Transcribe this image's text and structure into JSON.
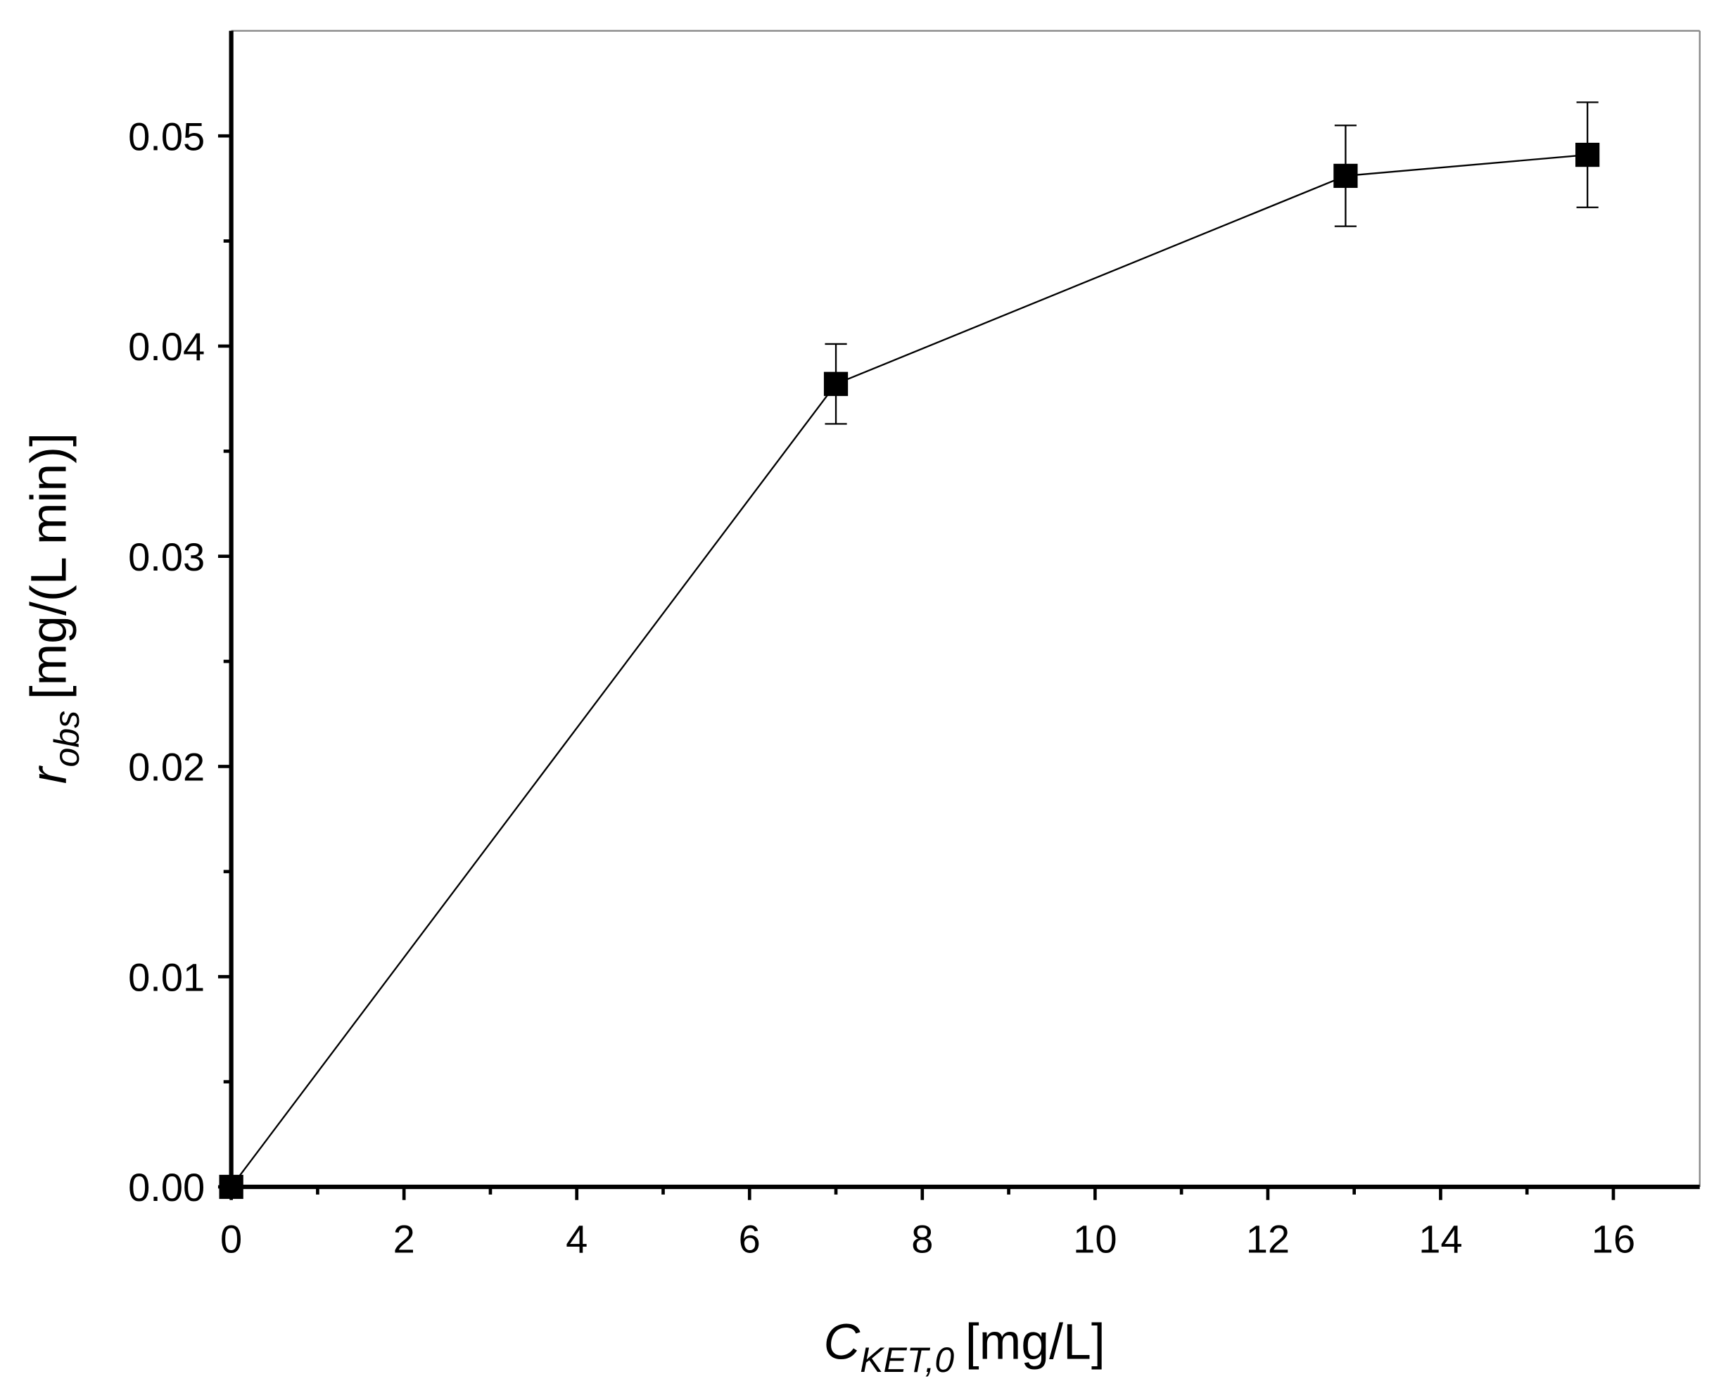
{
  "chart_data": {
    "type": "line",
    "x_label": {
      "symbol": "C",
      "subscript": "KET,0",
      "unit": "[mg/L]"
    },
    "y_label": {
      "symbol": "r",
      "subscript": "obs",
      "unit": "[mg/(L min)]"
    },
    "x": [
      0,
      7,
      12.9,
      15.7
    ],
    "series": [
      {
        "color": "#000000",
        "values": [
          0,
          0.0382,
          0.0481,
          0.0491
        ],
        "errors": [
          0,
          0.0019,
          0.0024,
          0.0025
        ]
      }
    ],
    "xlim": [
      0,
      17
    ],
    "ylim": [
      0,
      0.055
    ],
    "xticks": [
      0,
      2,
      4,
      6,
      8,
      10,
      12,
      14,
      16
    ],
    "x_minor_ticks": [
      1,
      3,
      5,
      7,
      9,
      11,
      13,
      15
    ],
    "yticks": [
      {
        "value": 0,
        "label": "0.00"
      },
      {
        "value": 0.01,
        "label": "0.01"
      },
      {
        "value": 0.02,
        "label": "0.02"
      },
      {
        "value": 0.03,
        "label": "0.03"
      },
      {
        "value": 0.04,
        "label": "0.04"
      },
      {
        "value": 0.05,
        "label": "0.05"
      }
    ],
    "y_minor_ticks": [
      0.005,
      0.015,
      0.025,
      0.035,
      0.045
    ],
    "grid": false,
    "markers": "square"
  }
}
